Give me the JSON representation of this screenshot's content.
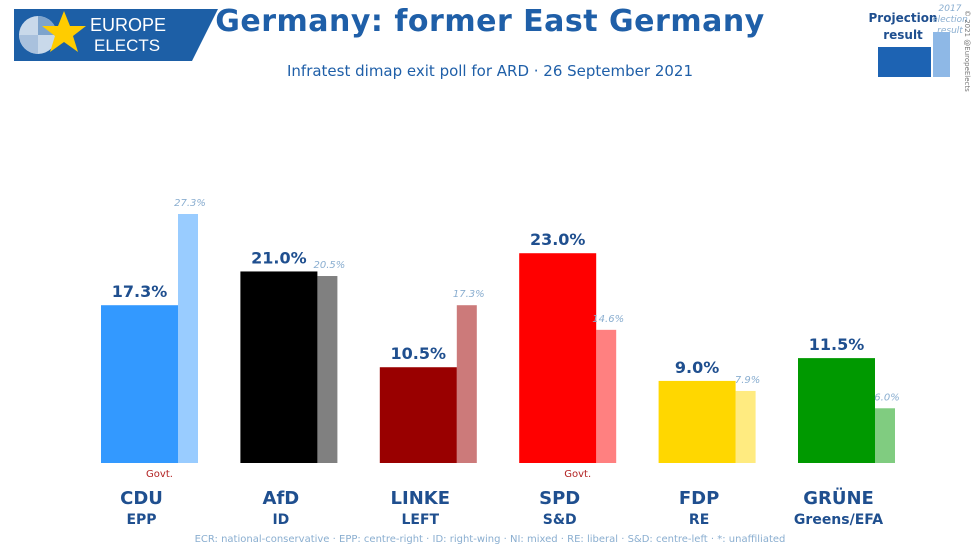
{
  "logo": {
    "line1": "EUROPE",
    "line2": "ELECTS"
  },
  "title": "Germany: former East Germany",
  "subtitle": "Infratest dimap exit poll for ARD · 26 September 2021",
  "legend": {
    "projection_label_1": "Projection",
    "projection_label_2": "result",
    "prev_label_1": "2017",
    "prev_label_2": "election",
    "prev_label_3": "result"
  },
  "copyright": "© 2021 @EuropeElects",
  "footer": "ECR: national-conservative · EPP: centre-right · ID: right-wing · NI: mixed · RE: liberal · S&D: centre-left · *: unaffiliated",
  "chart_data": {
    "type": "bar",
    "categories": [
      "CDU",
      "AfD",
      "LINKE",
      "SPD",
      "FDP",
      "GRÜNE"
    ],
    "groups": [
      "EPP",
      "ID",
      "LEFT",
      "S&D",
      "RE",
      "Greens/EFA"
    ],
    "government_flags": [
      "Govt.",
      "",
      "",
      "Govt.",
      "",
      ""
    ],
    "series": [
      {
        "values": [
          17.3,
          21.0,
          10.5,
          23.0,
          9.0,
          11.5
        ],
        "labels": [
          "17.3%",
          "21.0%",
          "10.5%",
          "23.0%",
          "9.0%",
          "11.5%"
        ]
      },
      {
        "values": [
          27.3,
          20.5,
          17.3,
          14.6,
          7.9,
          6.0
        ],
        "labels": [
          "27.3%",
          "20.5%",
          "17.3%",
          "14.6%",
          "7.9%",
          "6.0%"
        ]
      }
    ],
    "colors": [
      "#3399ff",
      "#000000",
      "#990000",
      "#ff0000",
      "#ffd700",
      "#009900"
    ],
    "prev_colors": [
      "#99ccff",
      "#808080",
      "#cc7a7a",
      "#ff8080",
      "#ffeb80",
      "#80cc80"
    ],
    "ylim": [
      0,
      27.3
    ]
  }
}
